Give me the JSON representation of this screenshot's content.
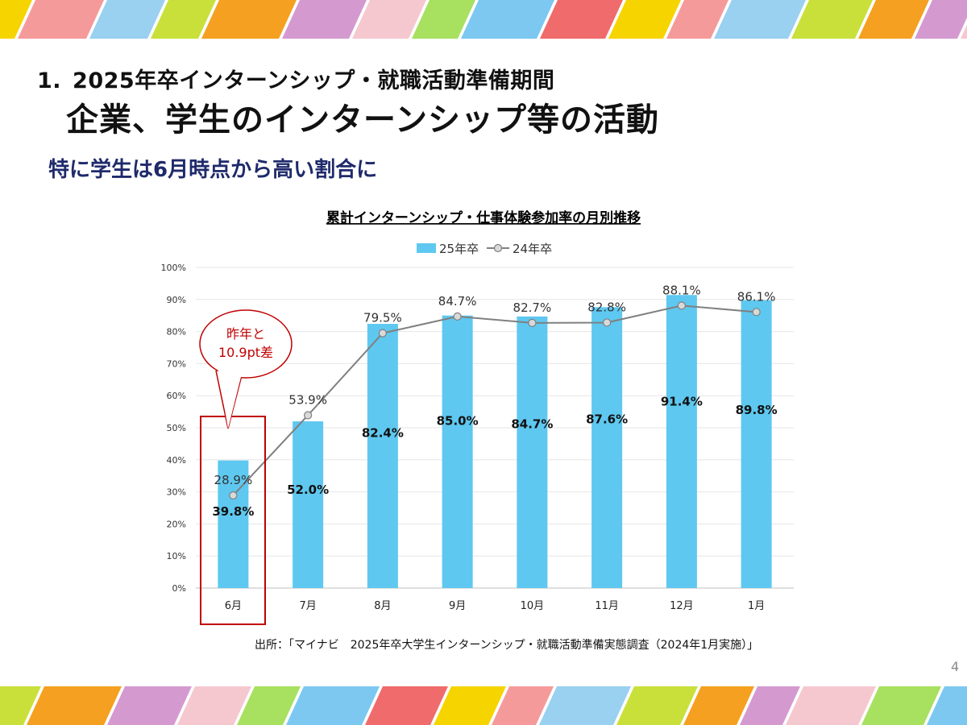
{
  "heading": {
    "number": "1.",
    "line1": "2025年卒インターンシップ・就職活動準備期間",
    "line2": "企業、学生のインターンシップ等の活動"
  },
  "subheading": "特に学生は6月時点から高い割合に",
  "callout": {
    "line1": "昨年と",
    "line2": "10.9pt差"
  },
  "source": "出所：「マイナビ　2025年卒大学生インターンシップ・就職活動準備実態調査（2024年1月実施）」",
  "page_number": "4",
  "colors": {
    "bar": "#5ec8f0",
    "line": "#808080",
    "marker_fill": "#d9d9d9",
    "callout": "#c00000",
    "highlight_box": "#c00000",
    "subheading": "#1f2a6b",
    "stripes": [
      "#f5d400",
      "#f59a9a",
      "#9ad0f0",
      "#c9e03a",
      "#f5a020",
      "#d49ad0",
      "#f5c8d0",
      "#a8e060",
      "#7cc8f0",
      "#f06b6b"
    ]
  },
  "chart_data": {
    "type": "bar",
    "title": "累計インターンシップ・仕事体験参加率の月別推移",
    "categories": [
      "6月",
      "7月",
      "8月",
      "9月",
      "10月",
      "11月",
      "12月",
      "1月"
    ],
    "series": [
      {
        "name": "25年卒",
        "type": "bar",
        "values": [
          39.8,
          52.0,
          82.4,
          85.0,
          84.7,
          87.6,
          91.4,
          89.8
        ],
        "labels": [
          "39.8%",
          "52.0%",
          "82.4%",
          "85.0%",
          "84.7%",
          "87.6%",
          "91.4%",
          "89.8%"
        ]
      },
      {
        "name": "24年卒",
        "type": "line",
        "values": [
          28.9,
          53.9,
          79.5,
          84.7,
          82.7,
          82.8,
          88.1,
          86.1
        ],
        "labels": [
          "28.9%",
          "53.9%",
          "79.5%",
          "84.7%",
          "82.7%",
          "82.8%",
          "88.1%",
          "86.1%"
        ]
      }
    ],
    "y_ticks": [
      "0%",
      "10%",
      "20%",
      "30%",
      "40%",
      "50%",
      "60%",
      "70%",
      "80%",
      "90%",
      "100%"
    ],
    "ylim": [
      0,
      100
    ],
    "grid": true,
    "legend": "top",
    "highlight_category": "6月"
  }
}
